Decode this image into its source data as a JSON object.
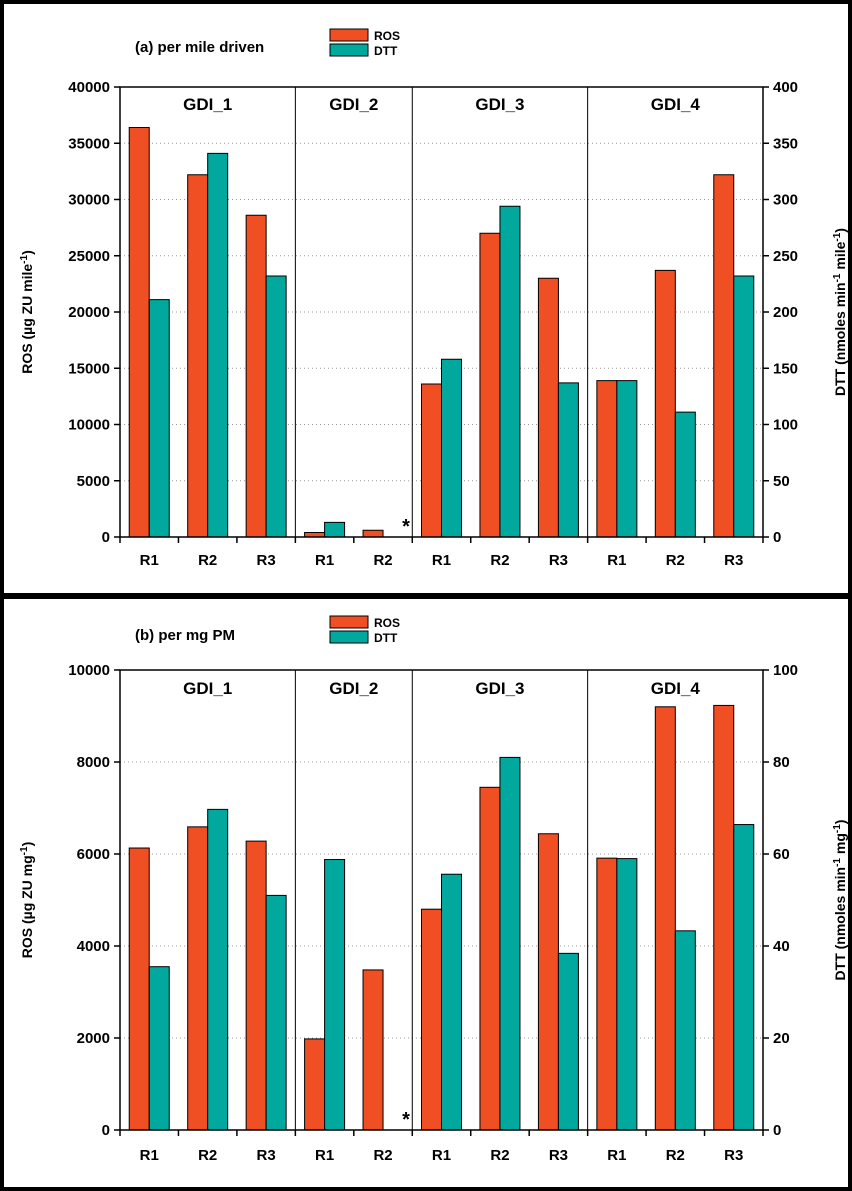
{
  "chart_data": [
    {
      "type": "bar",
      "title": "(a) per mile driven",
      "ylabel_left": "ROS (µg ZU mile",
      "ylabel_left_sup": "-1",
      "ylabel_left_end": ")",
      "ylabel_right": "DTT (nmoles min",
      "ylabel_right_sup1": "-1",
      "ylabel_right_mid": " mile",
      "ylabel_right_sup2": "-1",
      "ylabel_right_end": ")",
      "ylim_left": [
        0,
        40000
      ],
      "ylim_right": [
        0,
        400
      ],
      "yticks_left": [
        0,
        5000,
        10000,
        15000,
        20000,
        25000,
        30000,
        35000,
        40000
      ],
      "yticks_right": [
        0,
        50,
        100,
        150,
        200,
        250,
        300,
        350,
        400
      ],
      "groups": [
        "GDI_1",
        "GDI_2",
        "GDI_3",
        "GDI_4"
      ],
      "categories": [
        "R1",
        "R2",
        "R3",
        "R1",
        "R2",
        "R1",
        "R2",
        "R3",
        "R1",
        "R2",
        "R3"
      ],
      "group_of_category": [
        0,
        0,
        0,
        1,
        1,
        2,
        2,
        2,
        3,
        3,
        3
      ],
      "series": [
        {
          "name": "ROS",
          "axis": "left",
          "color": "#f04e23",
          "values": [
            36400,
            32200,
            28600,
            400,
            600,
            13600,
            27000,
            23000,
            13900,
            23700,
            32200
          ]
        },
        {
          "name": "DTT",
          "axis": "right",
          "color": "#00a89d",
          "values": [
            211,
            341,
            232,
            13,
            null,
            158,
            294,
            137,
            139,
            111,
            232
          ]
        }
      ],
      "missing_marker": "*",
      "missing_index": 4,
      "legend": "top-center",
      "grid": true
    },
    {
      "type": "bar",
      "title": "(b) per mg PM",
      "ylabel_left": "ROS (µg ZU mg",
      "ylabel_left_sup": "-1",
      "ylabel_left_end": ")",
      "ylabel_right": "DTT (nmoles min",
      "ylabel_right_sup1": "-1",
      "ylabel_right_mid": " mg",
      "ylabel_right_sup2": "-1",
      "ylabel_right_end": ")",
      "ylim_left": [
        0,
        10000
      ],
      "ylim_right": [
        0,
        100
      ],
      "yticks_left": [
        0,
        2000,
        4000,
        6000,
        8000,
        10000
      ],
      "yticks_right": [
        0,
        20,
        40,
        60,
        80,
        100
      ],
      "groups": [
        "GDI_1",
        "GDI_2",
        "GDI_3",
        "GDI_4"
      ],
      "categories": [
        "R1",
        "R2",
        "R3",
        "R1",
        "R2",
        "R1",
        "R2",
        "R3",
        "R1",
        "R2",
        "R3"
      ],
      "group_of_category": [
        0,
        0,
        0,
        1,
        1,
        2,
        2,
        2,
        3,
        3,
        3
      ],
      "series": [
        {
          "name": "ROS",
          "axis": "left",
          "color": "#f04e23",
          "values": [
            6130,
            6590,
            6280,
            1980,
            3480,
            4800,
            7450,
            6440,
            5910,
            9200,
            9230
          ]
        },
        {
          "name": "DTT",
          "axis": "right",
          "color": "#00a89d",
          "values": [
            35.5,
            69.7,
            51,
            58.8,
            null,
            55.6,
            81,
            38.4,
            59,
            43.3,
            66.4
          ]
        }
      ],
      "missing_marker": "*",
      "missing_index": 4,
      "legend": "top-center",
      "grid": true
    }
  ]
}
